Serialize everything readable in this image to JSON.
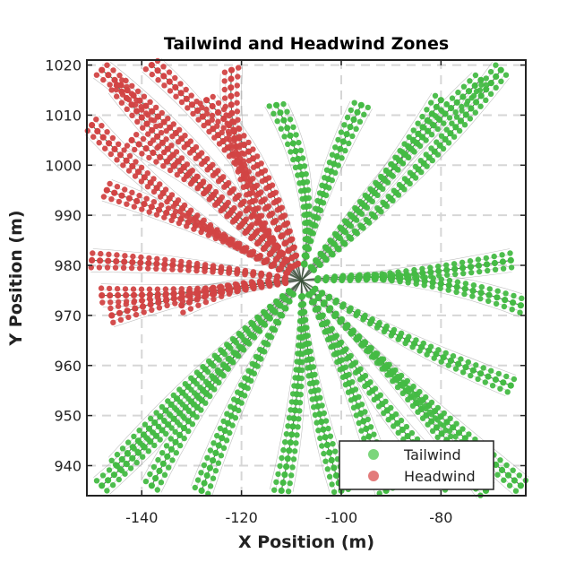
{
  "chart_data": {
    "type": "scatter",
    "title": "Tailwind and Headwind Zones",
    "xlabel": "X Position (m)",
    "ylabel": "Y Position (m)",
    "xlim": [
      -151,
      -63
    ],
    "ylim": [
      934,
      1021
    ],
    "xticks": [
      -140,
      -120,
      -100,
      -80
    ],
    "yticks": [
      940,
      950,
      960,
      970,
      980,
      990,
      1000,
      1010,
      1020
    ],
    "grid": true,
    "legend_position": "bottom-right",
    "colors": {
      "tailwind": "#44bb44",
      "headwind": "#d24444",
      "path": "#8a8a8a",
      "grid": "#d6d6d6"
    },
    "center": [
      -108,
      977
    ],
    "series": [
      {
        "name": "Tailwind",
        "zone": "tailwind",
        "marker_color": "#44bb44",
        "legend_color": "#7cd67c"
      },
      {
        "name": "Headwind",
        "zone": "headwind",
        "marker_color": "#d24444",
        "legend_color": "#e37b7b"
      }
    ],
    "arms": [
      {
        "zone": "headwind",
        "end": [
          -148,
          1019
        ],
        "curve": 0.08
      },
      {
        "zone": "headwind",
        "end": [
          -145,
          1016
        ],
        "curve": -0.06
      },
      {
        "zone": "headwind",
        "end": [
          -138,
          1020
        ],
        "curve": 0.12
      },
      {
        "zone": "headwind",
        "end": [
          -150,
          1008
        ],
        "curve": -0.1
      },
      {
        "zone": "headwind",
        "end": [
          -147,
          995
        ],
        "curve": 0.05
      },
      {
        "zone": "headwind",
        "end": [
          -122,
          1019
        ],
        "curve": -0.2
      },
      {
        "zone": "headwind",
        "end": [
          -150,
          981
        ],
        "curve": 0.03
      },
      {
        "zone": "headwind",
        "end": [
          -148,
          974
        ],
        "curve": -0.04
      },
      {
        "zone": "headwind",
        "end": [
          -146,
          970
        ],
        "curve": 0.06
      },
      {
        "zone": "headwind",
        "end": [
          -132,
          972
        ],
        "curve": 0.1
      },
      {
        "zone": "headwind",
        "end": [
          -127,
          1013
        ],
        "curve": 0.15
      },
      {
        "zone": "headwind",
        "end": [
          -142,
          1005
        ],
        "curve": 0.09
      },
      {
        "zone": "tailwind",
        "end": [
          -68,
          1019
        ],
        "curve": 0.06
      },
      {
        "zone": "tailwind",
        "end": [
          -72,
          1017
        ],
        "curve": -0.05
      },
      {
        "zone": "tailwind",
        "end": [
          -80,
          1013
        ],
        "curve": 0.04
      },
      {
        "zone": "tailwind",
        "end": [
          -96,
          1012
        ],
        "curve": -0.08
      },
      {
        "zone": "tailwind",
        "end": [
          -113,
          1012
        ],
        "curve": 0.18
      },
      {
        "zone": "tailwind",
        "end": [
          -66,
          981
        ],
        "curve": 0.04
      },
      {
        "zone": "tailwind",
        "end": [
          -64,
          972
        ],
        "curve": -0.12
      },
      {
        "zone": "tailwind",
        "end": [
          -66,
          956
        ],
        "curve": 0.05
      },
      {
        "zone": "tailwind",
        "end": [
          -64,
          936
        ],
        "curve": 0.03
      },
      {
        "zone": "tailwind",
        "end": [
          -71,
          935
        ],
        "curve": -0.04
      },
      {
        "zone": "tailwind",
        "end": [
          -78,
          936
        ],
        "curve": 0.06
      },
      {
        "zone": "tailwind",
        "end": [
          -91,
          935
        ],
        "curve": -0.05
      },
      {
        "zone": "tailwind",
        "end": [
          -100,
          935
        ],
        "curve": 0.07
      },
      {
        "zone": "tailwind",
        "end": [
          -112,
          935
        ],
        "curve": -0.06
      },
      {
        "zone": "tailwind",
        "end": [
          -128,
          935
        ],
        "curve": 0.05
      },
      {
        "zone": "tailwind",
        "end": [
          -148,
          936
        ],
        "curve": -0.04
      },
      {
        "zone": "tailwind",
        "end": [
          -145,
          940
        ],
        "curve": 0.04
      },
      {
        "zone": "tailwind",
        "end": [
          -138,
          936
        ],
        "curve": 0.08
      }
    ]
  }
}
